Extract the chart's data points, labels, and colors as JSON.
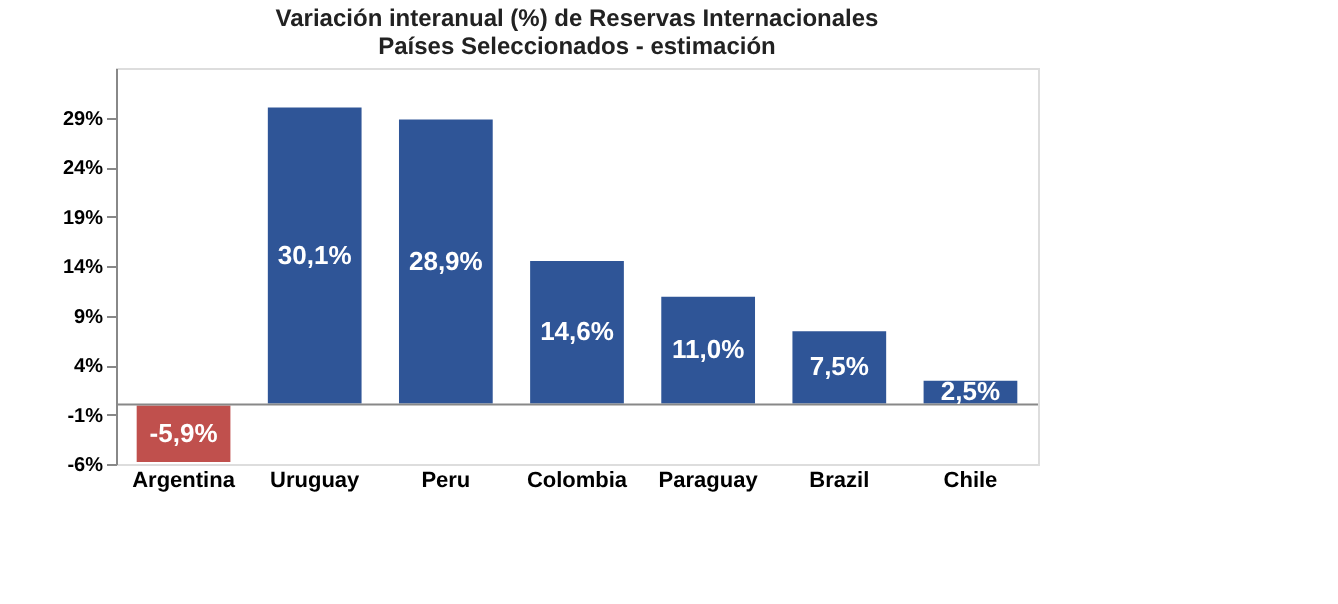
{
  "chart_data": {
    "type": "bar",
    "title": "Variación interanual (%) de Reservas Internacionales",
    "subtitle": "Países Seleccionados - estimación",
    "categories": [
      "Argentina",
      "Uruguay",
      "Peru",
      "Colombia",
      "Paraguay",
      "Brazil",
      "Chile"
    ],
    "values": [
      -5.9,
      30.1,
      28.9,
      14.6,
      11.0,
      7.5,
      2.5
    ],
    "colors": [
      "#c0504d",
      "#2f5597",
      "#2f5597",
      "#2f5597",
      "#2f5597",
      "#2f5597",
      "#2f5597"
    ],
    "value_labels": [
      "-5,9%",
      "30,1%",
      "28,9%",
      "14,6%",
      "11,0%",
      "7,5%",
      "2,5%"
    ],
    "ylim": [
      -6,
      34
    ],
    "yticks": [
      {
        "value": -6,
        "label": "-6%"
      },
      {
        "value": -1,
        "label": "-1%"
      },
      {
        "value": 4,
        "label": "4%"
      },
      {
        "value": 9,
        "label": "9%"
      },
      {
        "value": 14,
        "label": "14%"
      },
      {
        "value": 19,
        "label": "19%"
      },
      {
        "value": 24,
        "label": "24%"
      },
      {
        "value": 29,
        "label": "29%"
      }
    ],
    "grid": false
  }
}
